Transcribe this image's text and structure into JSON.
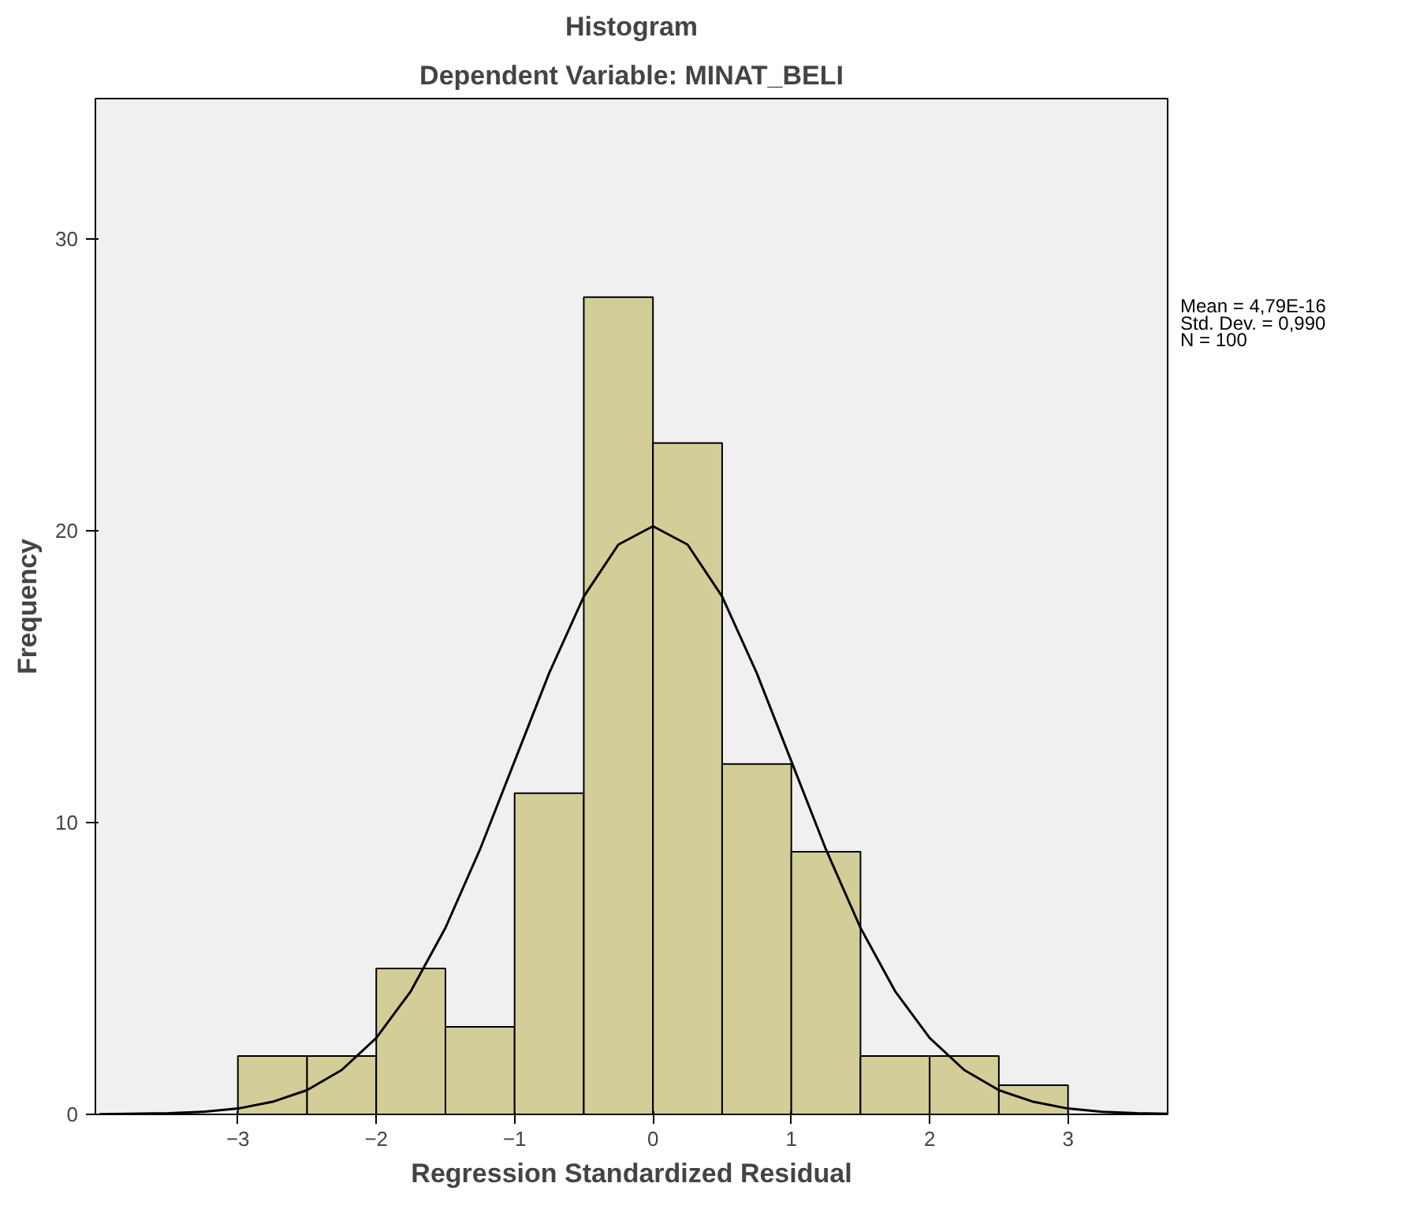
{
  "chart_data": {
    "type": "histogram",
    "title": "Histogram",
    "subtitle": "Dependent Variable: MINAT_BELI",
    "xlabel": "Regression Standardized Residual",
    "ylabel": "Frequency",
    "bins": [
      -3,
      -2.5,
      -2,
      -1.5,
      -1,
      -0.5,
      0,
      0.5,
      1,
      1.5,
      2,
      2.5,
      3
    ],
    "values": [
      2,
      2,
      5,
      3,
      11,
      28,
      23,
      12,
      9,
      2,
      2,
      1
    ],
    "color": "#d3ce97",
    "series": [
      {
        "type": "line",
        "color": "#000000",
        "x": [
          -4.0,
          -3.5,
          -3.25,
          -3,
          -2.75,
          -2.5,
          -2.25,
          -2,
          -1.75,
          -1.5,
          -1.25,
          -1,
          -0.75,
          -0.5,
          -0.25,
          0,
          0.25,
          0.5,
          0.75,
          1,
          1.25,
          1.5,
          1.75,
          2,
          2.25,
          2.5,
          2.75,
          3,
          3.25,
          3.5,
          3.72
        ],
        "values": [
          0.01,
          0.04,
          0.09,
          0.2,
          0.43,
          0.83,
          1.52,
          2.62,
          4.22,
          6.39,
          9.08,
          12.1,
          15.12,
          17.74,
          19.52,
          20.15,
          19.52,
          17.74,
          15.12,
          12.1,
          9.08,
          6.39,
          4.22,
          2.62,
          1.52,
          0.83,
          0.43,
          0.2,
          0.09,
          0.04,
          0.02
        ]
      }
    ],
    "xlim": [
      -4.03,
      3.72
    ],
    "ylim": [
      0,
      34.8
    ],
    "xticks": [
      -3,
      -2,
      -1,
      0,
      1,
      2,
      3
    ],
    "yticks": [
      0,
      10,
      20,
      30
    ],
    "annotations": [
      "Mean = 4,79E-16",
      "Std. Dev. = 0,990",
      "N = 100"
    ],
    "grid": false
  }
}
